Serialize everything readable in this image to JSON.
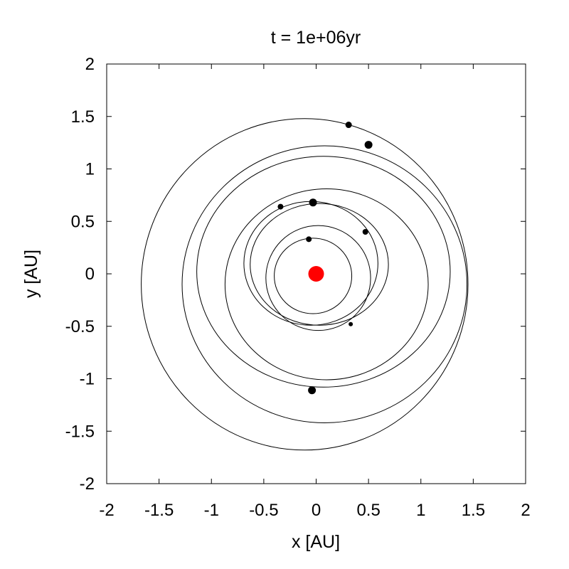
{
  "chart_data": {
    "type": "scatter",
    "title": "t = 1e+06yr",
    "xlabel": "x [AU]",
    "ylabel": "y [AU]",
    "xlim": [
      -2,
      2
    ],
    "ylim": [
      -2,
      2
    ],
    "grid": false,
    "x_ticks": [
      -2,
      -1.5,
      -1,
      -0.5,
      0,
      0.5,
      1,
      1.5,
      2
    ],
    "x_tick_labels": [
      "-2",
      "-1.5",
      "-1",
      "-0.5",
      "0",
      "0.5",
      "1",
      "1.5",
      "2"
    ],
    "y_ticks": [
      2,
      1.5,
      1,
      0.5,
      0,
      -0.5,
      -1,
      -1.5,
      -2
    ],
    "y_tick_labels": [
      "2",
      "1.5",
      "1",
      "0.5",
      "0",
      "-0.5",
      "-1",
      "-1.5",
      "-2"
    ],
    "star": {
      "x": 0,
      "y": 0,
      "color": "#ff0000"
    },
    "orbits": [
      {
        "cx": -0.03,
        "cy": -0.02,
        "rx": 0.37,
        "ry": 0.36
      },
      {
        "cx": 0.02,
        "cy": -0.04,
        "rx": 0.5,
        "ry": 0.5
      },
      {
        "cx": 0.03,
        "cy": 0.09,
        "rx": 0.66,
        "ry": 0.58
      },
      {
        "cx": -0.05,
        "cy": 0.1,
        "rx": 0.64,
        "ry": 0.59
      },
      {
        "cx": 0.1,
        "cy": -0.1,
        "rx": 0.97,
        "ry": 0.91
      },
      {
        "cx": 0.07,
        "cy": 0.02,
        "rx": 1.21,
        "ry": 1.1
      },
      {
        "cx": 0.08,
        "cy": -0.1,
        "rx": 1.36,
        "ry": 1.32
      },
      {
        "cx": -0.11,
        "cy": -0.1,
        "rx": 1.56,
        "ry": 1.58
      }
    ],
    "planets": [
      {
        "x": 0.31,
        "y": 1.42,
        "size": "medium"
      },
      {
        "x": 0.5,
        "y": 1.23,
        "size": "large"
      },
      {
        "x": -0.34,
        "y": 0.64,
        "size": "small"
      },
      {
        "x": -0.03,
        "y": 0.68,
        "size": "large"
      },
      {
        "x": 0.47,
        "y": 0.4,
        "size": "small"
      },
      {
        "x": -0.07,
        "y": 0.33,
        "size": "small"
      },
      {
        "x": 0.33,
        "y": -0.48,
        "size": "tiny"
      },
      {
        "x": -0.04,
        "y": -1.11,
        "size": "large"
      }
    ]
  }
}
